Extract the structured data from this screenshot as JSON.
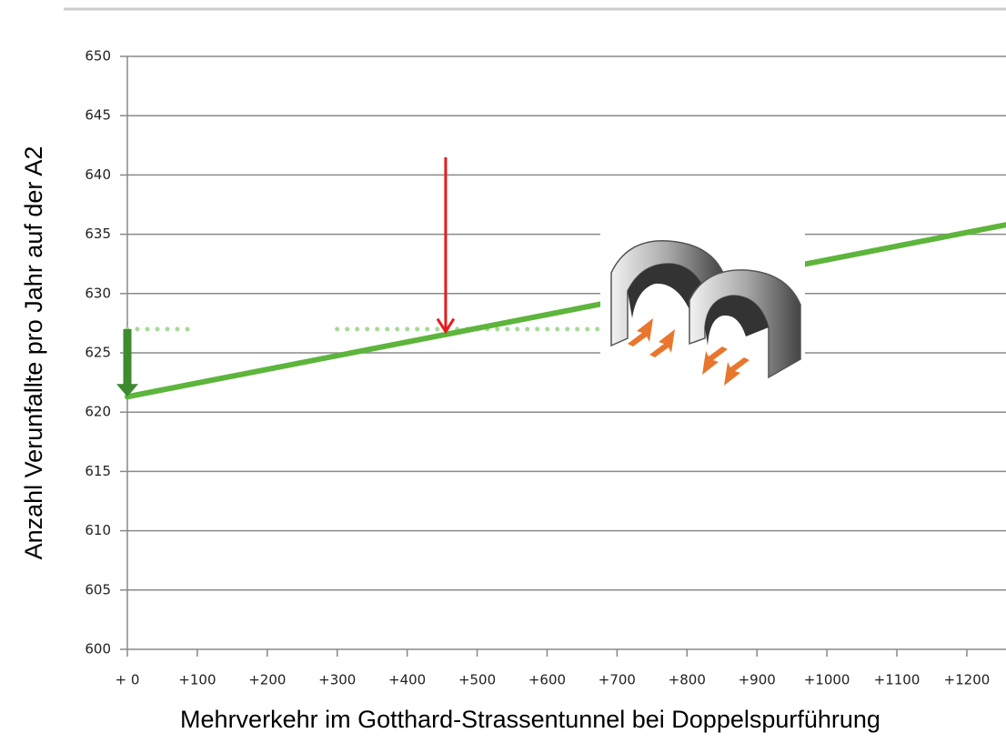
{
  "chart_data": {
    "type": "line",
    "xlabel": "Mehrverkehr im Gotthard-Strassentunnel bei Doppelspurführung",
    "ylabel": "Anzahl Verunfallte pro Jahr auf der A2",
    "xlim": [
      0,
      1256
    ],
    "ylim": [
      600,
      650
    ],
    "yticks": [
      600,
      605,
      610,
      615,
      620,
      625,
      630,
      635,
      640,
      645,
      650
    ],
    "xticks": [
      {
        "value": 0,
        "label": "+ 0"
      },
      {
        "value": 100,
        "label": "+100"
      },
      {
        "value": 200,
        "label": "+200"
      },
      {
        "value": 300,
        "label": "+300"
      },
      {
        "value": 400,
        "label": "+400"
      },
      {
        "value": 500,
        "label": "+500"
      },
      {
        "value": 600,
        "label": "+600"
      },
      {
        "value": 700,
        "label": "+700"
      },
      {
        "value": 800,
        "label": "+800"
      },
      {
        "value": 900,
        "label": "+900"
      },
      {
        "value": 1000,
        "label": "+1000"
      },
      {
        "value": 1100,
        "label": "+1100"
      },
      {
        "value": 1200,
        "label": "+1200"
      }
    ],
    "grid": true,
    "series": [
      {
        "color": "#5db53c",
        "x": [
          0,
          1256
        ],
        "values": [
          621.3,
          635.8
        ]
      },
      {
        "color": "#a8d89a",
        "style": "dotted",
        "x": [
          0,
          87,
          200,
          300,
          676
        ],
        "values": [
          627,
          627,
          null,
          627,
          627
        ]
      }
    ],
    "arrows": [
      {
        "color": "#3e8a2e",
        "x": 0,
        "from": 627,
        "to": 621.3
      },
      {
        "color": "#e41c1c",
        "x": 455,
        "from": 641.5,
        "to": 626.8
      }
    ]
  }
}
